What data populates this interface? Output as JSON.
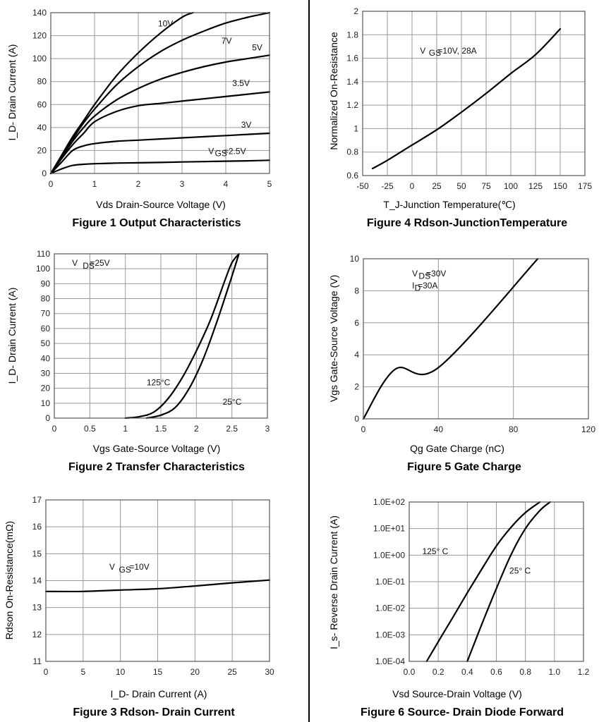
{
  "chart_data": [
    {
      "id": "fig1",
      "type": "line",
      "caption": "Figure 1 Output Characteristics",
      "xlabel": "Vds Drain-Source Voltage (V)",
      "ylabel": "I_D- Drain Current (A)",
      "xlim": [
        0,
        5
      ],
      "ylim": [
        0,
        140
      ],
      "xticks": [
        0,
        1,
        2,
        3,
        4,
        5
      ],
      "yticks": [
        0,
        20,
        40,
        60,
        80,
        100,
        120,
        140
      ],
      "grid": true,
      "series": [
        {
          "name": "10V",
          "x": [
            0,
            0.25,
            0.5,
            0.75,
            1,
            1.5,
            2,
            2.5,
            3,
            3.25
          ],
          "y": [
            0,
            16,
            32,
            46,
            60,
            85,
            105,
            122,
            136,
            140
          ]
        },
        {
          "name": "7V",
          "x": [
            0,
            0.25,
            0.5,
            0.75,
            1,
            1.5,
            2,
            2.5,
            3,
            3.5,
            4,
            4.5,
            5
          ],
          "y": [
            0,
            15,
            30,
            44,
            56,
            77,
            93,
            106,
            116,
            124,
            131,
            136,
            140
          ]
        },
        {
          "name": "5V",
          "x": [
            0,
            0.25,
            0.5,
            0.75,
            1,
            1.5,
            2,
            2.5,
            3,
            3.5,
            4,
            4.5,
            5
          ],
          "y": [
            0,
            14,
            28,
            40,
            50,
            64,
            74,
            82,
            88,
            93,
            97,
            100,
            103
          ]
        },
        {
          "name": "3.5V",
          "x": [
            0,
            0.25,
            0.5,
            0.75,
            1,
            1.5,
            2,
            2.5,
            3,
            3.5,
            4,
            4.5,
            5
          ],
          "y": [
            0,
            13,
            25,
            35,
            45,
            54,
            59,
            61,
            63,
            65,
            67,
            69,
            71
          ]
        },
        {
          "name": "3V",
          "x": [
            0,
            0.25,
            0.5,
            0.75,
            1,
            1.5,
            2,
            2.5,
            3,
            3.5,
            4,
            4.5,
            5
          ],
          "y": [
            0,
            10,
            20,
            24,
            26,
            28,
            29,
            30,
            31,
            32,
            33,
            34,
            35
          ]
        },
        {
          "name": "V_GS=2.5V",
          "x": [
            0,
            0.25,
            0.5,
            0.75,
            1,
            1.5,
            2,
            2.5,
            3,
            3.5,
            4,
            4.5,
            5
          ],
          "y": [
            0,
            4,
            7,
            8,
            8.5,
            9,
            9.3,
            9.6,
            10,
            10.3,
            10.7,
            11,
            11.5
          ]
        }
      ],
      "labels": [
        {
          "text": "10V",
          "x": 2.45,
          "y": 128
        },
        {
          "text": "7V",
          "x": 3.9,
          "y": 113
        },
        {
          "text": "5V",
          "x": 4.6,
          "y": 107
        },
        {
          "text": "3.5V",
          "x": 4.15,
          "y": 76
        },
        {
          "text": "3V",
          "x": 4.35,
          "y": 40
        },
        {
          "text": "V",
          "x": 3.6,
          "y": 17
        },
        {
          "text": "GS",
          "x": 3.75,
          "y": 15
        },
        {
          "text": "=2.5V",
          "x": 3.95,
          "y": 17
        }
      ]
    },
    {
      "id": "fig2",
      "type": "line",
      "caption": "Figure 2 Transfer Characteristics",
      "xlabel": "Vgs Gate-Source Voltage (V)",
      "ylabel": "I_D- Drain Current (A)",
      "xlim": [
        0,
        3
      ],
      "ylim": [
        0,
        110
      ],
      "xticks": [
        "0",
        "0.5",
        "1",
        "1.5",
        "2",
        "2.5",
        "3"
      ],
      "yticks": [
        0,
        10,
        20,
        30,
        40,
        50,
        60,
        70,
        80,
        90,
        100,
        110
      ],
      "grid": true,
      "series": [
        {
          "name": "125°C",
          "x": [
            1,
            1.2,
            1.4,
            1.6,
            1.8,
            2,
            2.2,
            2.4,
            2.5,
            2.6
          ],
          "y": [
            0,
            1,
            4,
            13,
            27,
            45,
            66,
            92,
            104,
            110
          ]
        },
        {
          "name": "25°C",
          "x": [
            1.3,
            1.5,
            1.7,
            1.9,
            2.1,
            2.3,
            2.5,
            2.6
          ],
          "y": [
            0,
            2,
            7,
            20,
            40,
            66,
            95,
            110
          ]
        }
      ],
      "labels": [
        {
          "text": "V",
          "x": 0.25,
          "y": 102
        },
        {
          "text": "DS",
          "x": 0.4,
          "y": 100
        },
        {
          "text": "=25V",
          "x": 0.5,
          "y": 102
        },
        {
          "text": "125°C",
          "x": 1.3,
          "y": 22
        },
        {
          "text": "25°C",
          "x": 2.37,
          "y": 9
        }
      ]
    },
    {
      "id": "fig3",
      "type": "line",
      "caption": "Figure 3 Rdson- Drain Current",
      "xlabel": "I_D- Drain Current (A)",
      "ylabel": "Rdson On-Resistance(mΩ)",
      "xlim": [
        0,
        30
      ],
      "ylim": [
        11,
        17
      ],
      "xticks": [
        0,
        5,
        10,
        15,
        20,
        25,
        30
      ],
      "yticks": [
        11,
        12,
        13,
        14,
        15,
        16,
        17
      ],
      "grid": true,
      "series": [
        {
          "name": "V_GS=10V",
          "x": [
            0,
            5,
            10,
            15,
            20,
            25,
            30
          ],
          "y": [
            13.6,
            13.6,
            13.65,
            13.7,
            13.8,
            13.92,
            14.02
          ]
        }
      ],
      "labels": [
        {
          "text": "V",
          "x": 8.5,
          "y": 14.4
        },
        {
          "text": "GS",
          "x": 9.8,
          "y": 14.3
        },
        {
          "text": "=10V",
          "x": 11.2,
          "y": 14.4
        }
      ]
    },
    {
      "id": "fig4",
      "type": "line",
      "caption": "Figure 4 Rdson-JunctionTemperature",
      "xlabel": "T_J-Junction Temperature(℃)",
      "ylabel": "Normalized On-Resistance",
      "xlim": [
        -50,
        175
      ],
      "ylim": [
        0.6,
        2
      ],
      "xticks": [
        -50,
        -25,
        0,
        25,
        50,
        75,
        100,
        125,
        150,
        175
      ],
      "yticks": [
        "0.6",
        "0.8",
        "1",
        "1.2",
        "1.4",
        "1.6",
        "1.8",
        "2"
      ],
      "grid": true,
      "series": [
        {
          "name": "V_GS=10V, 28A",
          "x": [
            -40,
            -25,
            0,
            25,
            50,
            75,
            100,
            125,
            150
          ],
          "y": [
            0.66,
            0.73,
            0.86,
            0.99,
            1.14,
            1.3,
            1.47,
            1.63,
            1.85
          ]
        }
      ],
      "labels": [
        {
          "text": "V",
          "x": 8,
          "y": 1.64
        },
        {
          "text": "GS",
          "x": 17,
          "y": 1.62
        },
        {
          "text": "=10V, 28A",
          "x": 26,
          "y": 1.64
        }
      ]
    },
    {
      "id": "fig5",
      "type": "line",
      "caption": "Figure 5 Gate Charge",
      "xlabel": "Qg Gate Charge (nC)",
      "ylabel": "Vgs Gate-Source Voltage (V)",
      "xlim": [
        0,
        120
      ],
      "ylim": [
        0,
        10
      ],
      "xticks": [
        0,
        40,
        80,
        120
      ],
      "yticks": [
        0,
        2,
        4,
        6,
        8,
        10
      ],
      "grid": true,
      "series": [
        {
          "name": "V_DS=30V, I_D=30A",
          "x": [
            0,
            17,
            40,
            93
          ],
          "y": [
            0,
            3.1,
            3.2,
            10
          ]
        }
      ],
      "labels": [
        {
          "text": "V",
          "x": 26,
          "y": 8.9
        },
        {
          "text": "DS",
          "x": 29.5,
          "y": 8.75
        },
        {
          "text": "=30V",
          "x": 33.5,
          "y": 8.9
        },
        {
          "text": "I",
          "x": 26,
          "y": 8.15
        },
        {
          "text": "D",
          "x": 27.3,
          "y": 8.0
        },
        {
          "text": "=30A",
          "x": 29,
          "y": 8.15
        }
      ]
    },
    {
      "id": "fig6",
      "type": "line",
      "caption": "Figure 6 Source- Drain Diode Forward",
      "xlabel": "Vsd Source-Drain Voltage (V)",
      "ylabel": "I_s- Reverse Drain Current (A)",
      "xlim": [
        0,
        1.2
      ],
      "ylim": [
        0.0001,
        100
      ],
      "yscale": "log",
      "xticks": [
        "0.0",
        "0.2",
        "0.4",
        "0.6",
        "0.8",
        "1.0",
        "1.2"
      ],
      "yticks": [
        "1.0E-04",
        "1.0E-03",
        "1.0E-02",
        "1.0E-01",
        "1.0E+00",
        "1.0E+01",
        "1.0E+02"
      ],
      "ytick_values": [
        0.0001,
        0.001,
        0.01,
        0.1,
        1,
        10,
        100
      ],
      "grid": true,
      "series": [
        {
          "name": "125° C",
          "x": [
            0.12,
            0.2,
            0.3,
            0.4,
            0.5,
            0.6,
            0.7,
            0.8,
            0.9
          ],
          "y": [
            0.0001,
            0.00055,
            0.0045,
            0.038,
            0.3,
            2.2,
            11,
            40,
            100
          ]
        },
        {
          "name": "25° C",
          "x": [
            0.4,
            0.5,
            0.6,
            0.7,
            0.8,
            0.9,
            0.97
          ],
          "y": [
            0.0001,
            0.0025,
            0.055,
            1.0,
            10,
            48,
            100
          ]
        }
      ],
      "labels": [
        {
          "text": "125° C",
          "x": 0.09,
          "y": 1.1
        },
        {
          "text": "25° C",
          "x": 0.69,
          "y": 0.2
        }
      ]
    }
  ]
}
